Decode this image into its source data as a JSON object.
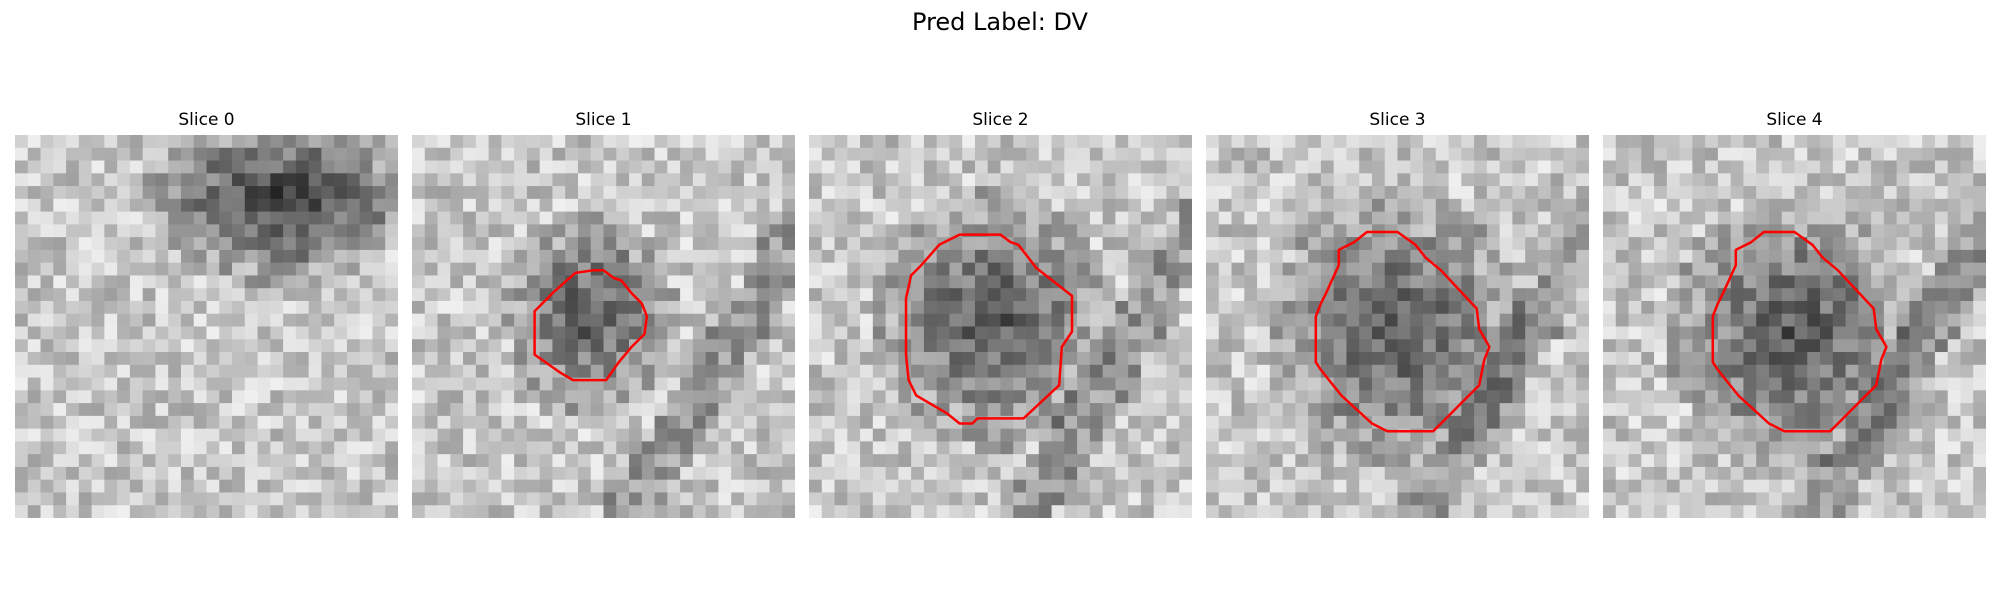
{
  "figure": {
    "title": "Pred Label: DV"
  },
  "panels": [
    {
      "title": "Slice 0",
      "has_contour": false
    },
    {
      "title": "Slice 1",
      "has_contour": true
    },
    {
      "title": "Slice 2",
      "has_contour": true
    },
    {
      "title": "Slice 3",
      "has_contour": true
    },
    {
      "title": "Slice 4",
      "has_contour": true
    }
  ],
  "colors": {
    "contour": "#ff0000",
    "background": "#ffffff"
  }
}
